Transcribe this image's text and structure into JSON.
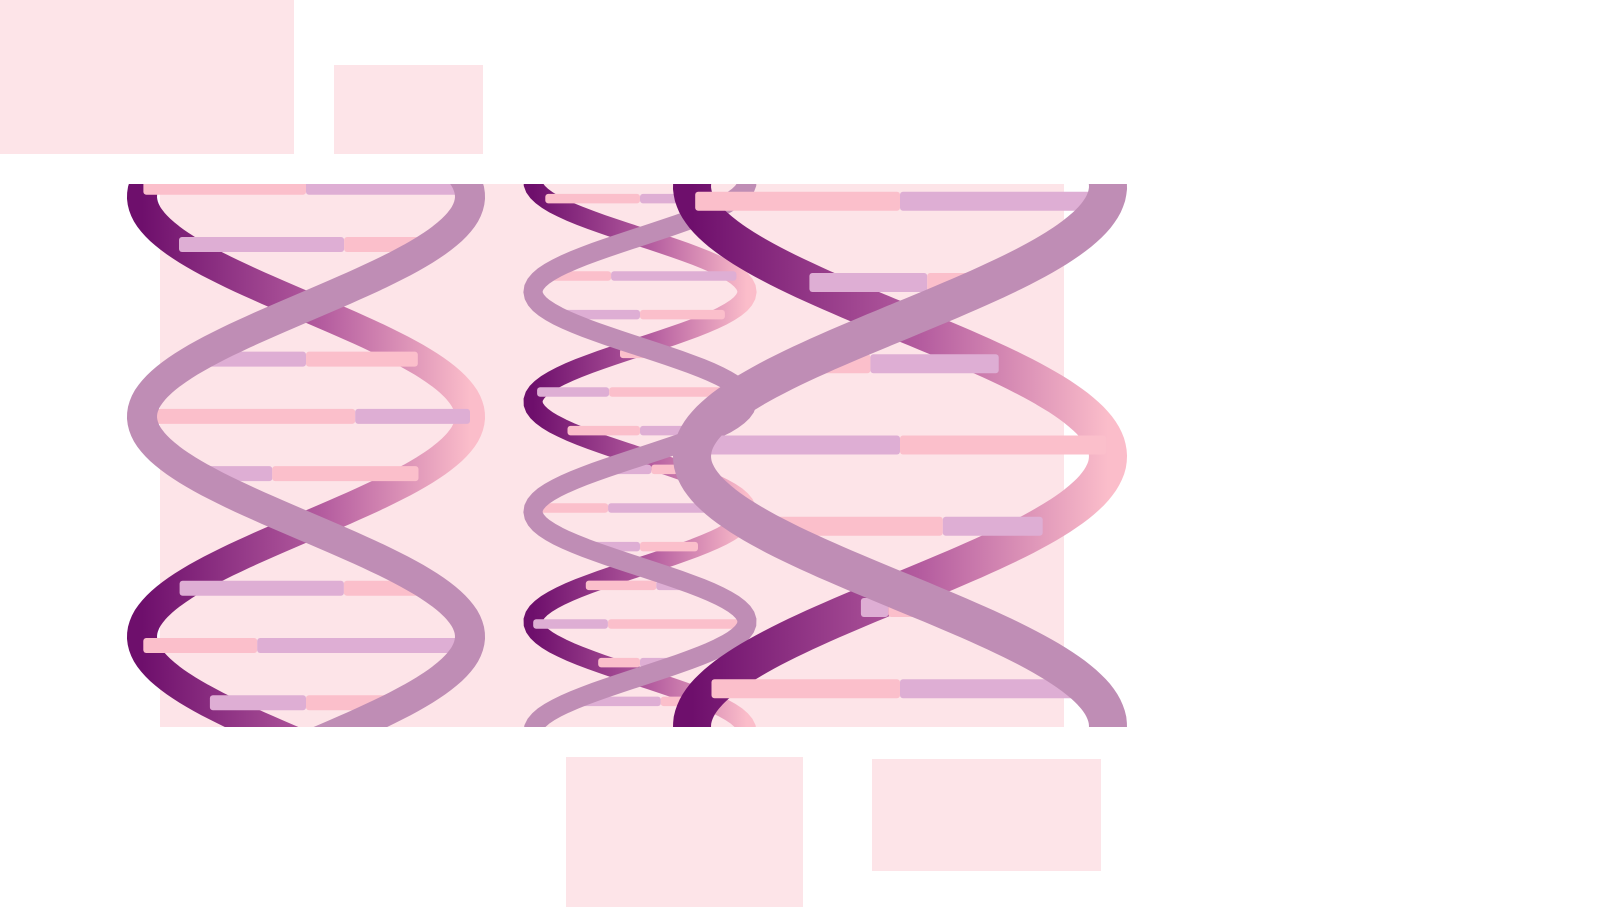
{
  "colors": {
    "block": "#fde4e8",
    "strand_front": "#bf8db5",
    "strand_back_dark": "#6e0f6c",
    "strand_back_mid": "#b45c9f",
    "strand_back_light": "#fbbdca",
    "base_pink": "#fbbfcb",
    "base_lilac": "#deaed4"
  },
  "icons": {
    "helix": "dna-double-helix-icon"
  },
  "helices": [
    {
      "name": "dna-helix-left"
    },
    {
      "name": "dna-helix-middle"
    },
    {
      "name": "dna-helix-right"
    }
  ]
}
